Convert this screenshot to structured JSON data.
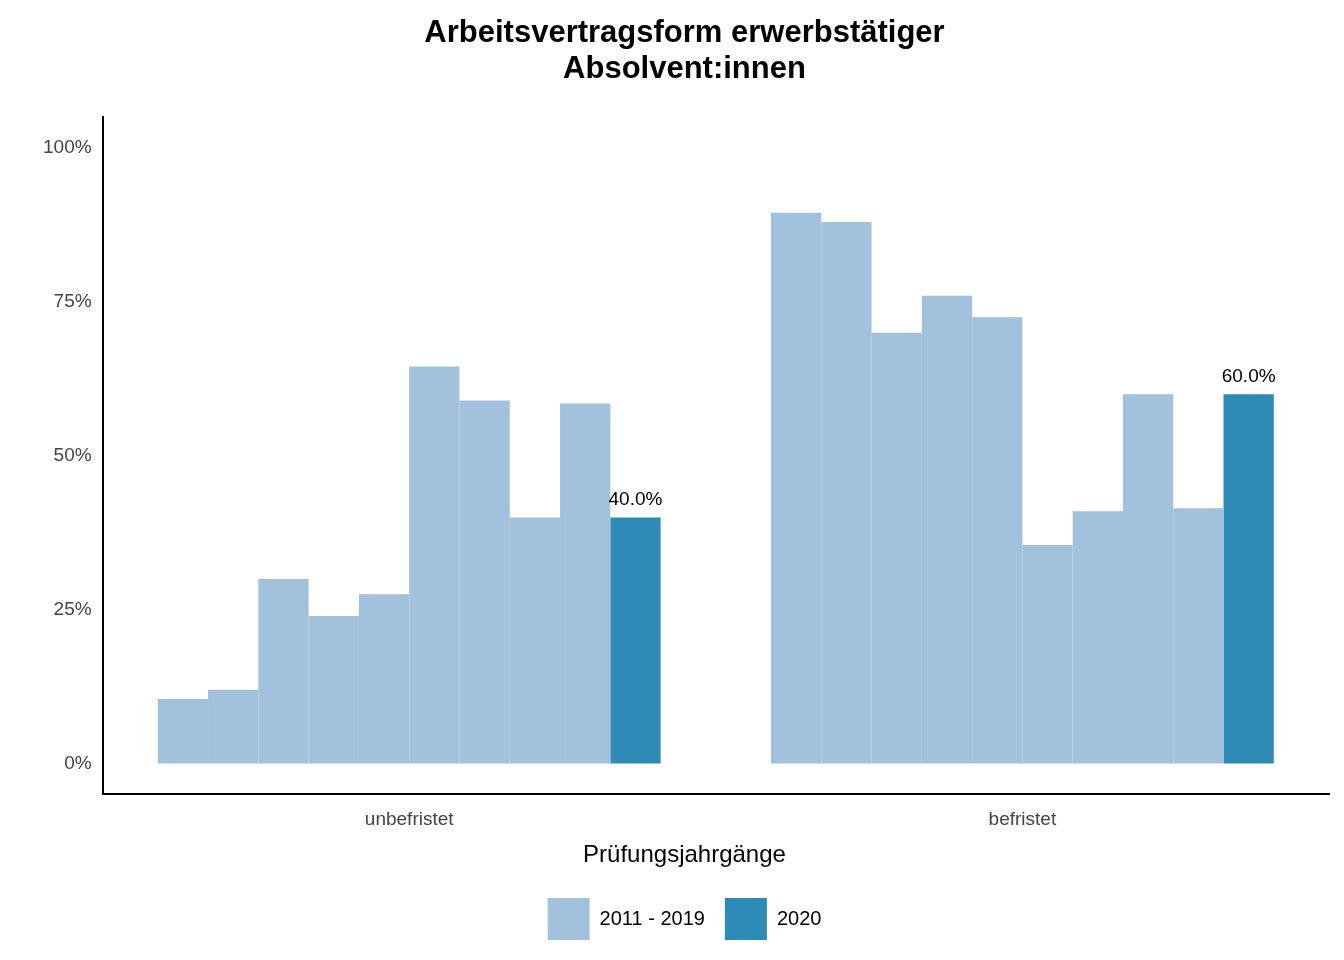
{
  "chart_data": {
    "type": "bar",
    "title": "Arbeitsvertragsform erwerbstätiger\nAbsolvent:innen",
    "categories": [
      "unbefristet",
      "befristet"
    ],
    "series": [
      {
        "name": "2011 - 2019",
        "color": "#a1c1dd",
        "values": [
          [
            10.5,
            12,
            30,
            24,
            27.5,
            64.5,
            59,
            40,
            58.5
          ],
          [
            89.5,
            88,
            70,
            76,
            72.5,
            35.5,
            41,
            60,
            41.5
          ]
        ]
      },
      {
        "name": "2020",
        "color": "#2e8bb8",
        "values": [
          40,
          60
        ],
        "value_labels": [
          "40.0%",
          "60.0%"
        ],
        "data_labels": true
      }
    ],
    "ylim": [
      -5,
      105
    ],
    "yticks": [
      {
        "value": 0,
        "label": "0%"
      },
      {
        "value": 25,
        "label": "25%"
      },
      {
        "value": 50,
        "label": "50%"
      },
      {
        "value": 75,
        "label": "75%"
      },
      {
        "value": 100,
        "label": "100%"
      }
    ],
    "grid": false,
    "legend": "bottom",
    "legend_title": "Prüfungsjahrgänge"
  }
}
